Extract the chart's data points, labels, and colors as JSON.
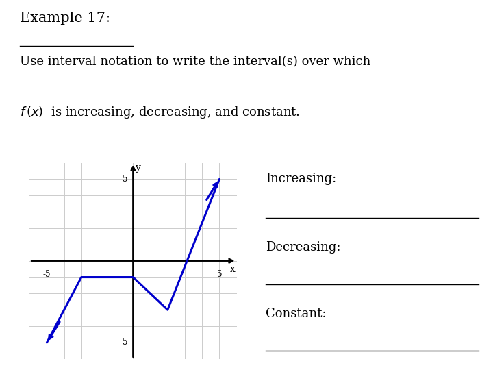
{
  "title": "Example 17:",
  "description_line1": "Use interval notation to write the interval(s) over which",
  "graph_points": [
    [
      -5,
      -5
    ],
    [
      -3,
      -1
    ],
    [
      0,
      -1
    ],
    [
      2,
      -3
    ],
    [
      5,
      5
    ]
  ],
  "line_color": "#0000CC",
  "line_width": 2.2,
  "xlim": [
    -6,
    6
  ],
  "ylim": [
    -6,
    6
  ],
  "grid_color": "#CCCCCC",
  "background_color": "#FFFFFF",
  "label_increasing": "Increasing:",
  "label_decreasing": "Decreasing:",
  "label_constant": "Constant:",
  "font_size_title": 15,
  "font_size_body": 13,
  "font_size_labels": 13
}
